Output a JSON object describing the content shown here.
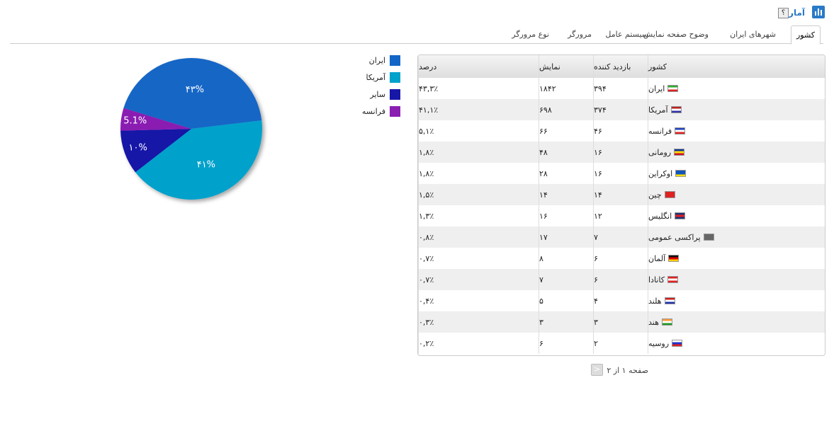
{
  "header": {
    "title": "آمار",
    "help": "؟"
  },
  "tabs": [
    "کشور",
    "شهرهای ایران",
    "وضوح صفحه نمایش",
    "سیستم عامل",
    "مرورگر",
    "نوع مرورگر"
  ],
  "chart_data": {
    "type": "pie",
    "categories": [
      "ایران",
      "آمریکا",
      "سایر",
      "فرانسه"
    ],
    "values": [
      43,
      41,
      10,
      5.1
    ],
    "value_labels": [
      "۴۳%",
      "۴۱%",
      "۱۰%",
      "5.1%"
    ],
    "colors": [
      "#1366c6",
      "#00a1cb",
      "#1717a7",
      "#8a1fb2"
    ]
  },
  "table": {
    "columns": [
      "کشور",
      "بازدید کننده",
      "نمایش",
      "درصد"
    ],
    "rows": [
      [
        "ایران",
        "۳۹۴",
        "۱۸۴۲",
        "۴۳,۳٪"
      ],
      [
        "آمریکا",
        "۳۷۴",
        "۶۹۸",
        "۴۱,۱٪"
      ],
      [
        "فرانسه",
        "۴۶",
        "۶۶",
        "۵,۱٪"
      ],
      [
        "رومانی",
        "۱۶",
        "۴۸",
        "۱,۸٪"
      ],
      [
        "اوکراین",
        "۱۶",
        "۲۸",
        "۱,۸٪"
      ],
      [
        "چین",
        "۱۴",
        "۱۴",
        "۱,۵٪"
      ],
      [
        "انگلیس",
        "۱۲",
        "۱۶",
        "۱,۳٪"
      ],
      [
        "پراکسی عمومی",
        "۷",
        "۱۷",
        "۰,۸٪"
      ],
      [
        "آلمان",
        "۶",
        "۸",
        "۰,۷٪"
      ],
      [
        "کانادا",
        "۶",
        "۷",
        "۰,۷٪"
      ],
      [
        "هلند",
        "۴",
        "۵",
        "۰,۴٪"
      ],
      [
        "هند",
        "۳",
        "۳",
        "۰,۳٪"
      ],
      [
        "روسیه",
        "۲",
        "۶",
        "۰,۲٪"
      ]
    ]
  },
  "pager": "صفحه ۱ از ۲"
}
